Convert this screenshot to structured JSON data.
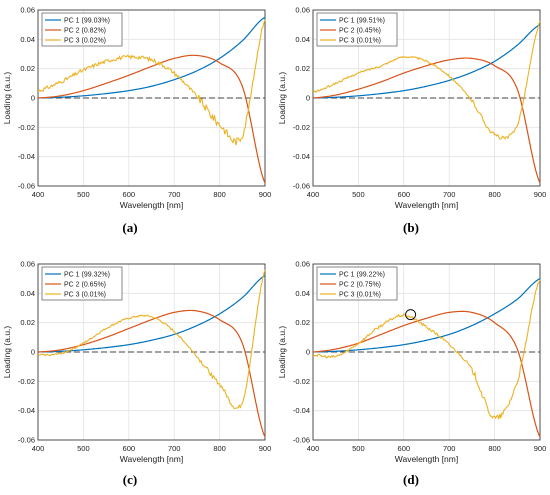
{
  "colors": {
    "pc1": "#0072BD",
    "pc2": "#D95319",
    "pc3": "#EDB120",
    "zero_line": "#444444",
    "grid": "#e3e3e3",
    "axis": "#262626"
  },
  "chart_data": [
    {
      "panel": "(a)",
      "type": "line",
      "xlabel": "Wavelength [nm]",
      "ylabel": "Loading (a.u.)",
      "xlim": [
        400,
        900
      ],
      "ylim": [
        -0.06,
        0.06
      ],
      "x_ticks": [
        "400",
        "500",
        "600",
        "700",
        "800",
        "900"
      ],
      "y_ticks": [
        "0.06",
        "0.04",
        "0.02",
        "0",
        "-0.02",
        "-0.04",
        "-0.06"
      ],
      "grid": true,
      "legend_position": "top-left",
      "noise": 0.0025,
      "x": [
        400,
        450,
        500,
        550,
        600,
        650,
        700,
        750,
        800,
        850,
        900
      ],
      "series": [
        {
          "name": "PC 1 (99.03%)",
          "values": [
            0.0,
            0.0005,
            0.0015,
            0.003,
            0.005,
            0.008,
            0.0125,
            0.0185,
            0.027,
            0.039,
            0.055
          ]
        },
        {
          "name": "PC 2 (0.82%)",
          "values": [
            0.0,
            0.0015,
            0.005,
            0.01,
            0.0155,
            0.0215,
            0.027,
            0.029,
            0.024,
            0.008,
            -0.058
          ]
        },
        {
          "name": "PC 3 (0.02%)",
          "values": [
            0.005,
            0.011,
            0.019,
            0.025,
            0.028,
            0.026,
            0.017,
            0.001,
            -0.018,
            -0.025,
            0.054
          ]
        }
      ]
    },
    {
      "panel": "(b)",
      "type": "line",
      "xlabel": "Wavelength [nm]",
      "ylabel": "Loading (a.u.)",
      "xlim": [
        400,
        900
      ],
      "ylim": [
        -0.06,
        0.06
      ],
      "x_ticks": [
        "400",
        "500",
        "600",
        "700",
        "800",
        "900"
      ],
      "y_ticks": [
        "0.06",
        "0.04",
        "0.02",
        "0",
        "-0.02",
        "-0.04",
        "-0.06"
      ],
      "grid": true,
      "legend_position": "top-left",
      "noise": 0.0012,
      "x": [
        400,
        450,
        500,
        550,
        600,
        650,
        700,
        750,
        800,
        850,
        900
      ],
      "series": [
        {
          "name": "PC 1 (99.51%)",
          "values": [
            0.0,
            0.0005,
            0.0015,
            0.003,
            0.005,
            0.008,
            0.012,
            0.0175,
            0.025,
            0.036,
            0.05
          ]
        },
        {
          "name": "PC 2 (0.45%)",
          "values": [
            0.0,
            0.002,
            0.006,
            0.011,
            0.017,
            0.022,
            0.026,
            0.027,
            0.022,
            0.006,
            -0.058
          ]
        },
        {
          "name": "PC 3 (0.01%)",
          "values": [
            0.004,
            0.01,
            0.017,
            0.022,
            0.028,
            0.025,
            0.015,
            -0.002,
            -0.025,
            -0.018,
            0.052
          ]
        }
      ]
    },
    {
      "panel": "(c)",
      "type": "line",
      "xlabel": "Wavelength [nm]",
      "ylabel": "Loading (a.u.)",
      "xlim": [
        400,
        900
      ],
      "ylim": [
        -0.06,
        0.06
      ],
      "x_ticks": [
        "400",
        "500",
        "600",
        "700",
        "800",
        "900"
      ],
      "y_ticks": [
        "0.06",
        "0.04",
        "0.02",
        "0",
        "-0.02",
        "-0.04",
        "-0.06"
      ],
      "grid": true,
      "legend_position": "top-left",
      "noise": 0.0012,
      "x": [
        400,
        450,
        500,
        550,
        600,
        650,
        700,
        750,
        800,
        850,
        900
      ],
      "series": [
        {
          "name": "PC 1 (99.32%)",
          "values": [
            0.0,
            0.0005,
            0.0015,
            0.003,
            0.005,
            0.008,
            0.012,
            0.018,
            0.026,
            0.037,
            0.052
          ]
        },
        {
          "name": "PC 2 (0.65%)",
          "values": [
            0.0,
            0.0015,
            0.005,
            0.01,
            0.016,
            0.022,
            0.027,
            0.028,
            0.022,
            0.006,
            -0.058
          ]
        },
        {
          "name": "PC 3 (0.01%)",
          "values": [
            -0.002,
            -0.001,
            0.006,
            0.016,
            0.023,
            0.024,
            0.014,
            -0.003,
            -0.022,
            -0.034,
            0.056
          ]
        }
      ]
    },
    {
      "panel": "(d)",
      "type": "line",
      "xlabel": "Wavelength [nm]",
      "ylabel": "Loading (a.u.)",
      "xlim": [
        400,
        900
      ],
      "ylim": [
        -0.06,
        0.06
      ],
      "x_ticks": [
        "400",
        "500",
        "600",
        "700",
        "800",
        "900"
      ],
      "y_ticks": [
        "0.06",
        "0.04",
        "0.02",
        "0",
        "-0.02",
        "-0.04",
        "-0.06"
      ],
      "grid": true,
      "legend_position": "top-left",
      "noise": 0.0018,
      "annotation": {
        "type": "circle",
        "x": 615,
        "y": 0.0255
      },
      "x": [
        400,
        450,
        500,
        550,
        600,
        650,
        700,
        750,
        800,
        850,
        900
      ],
      "series": [
        {
          "name": "PC 1 (99.22%)",
          "values": [
            0.0,
            0.0005,
            0.0015,
            0.003,
            0.005,
            0.008,
            0.012,
            0.018,
            0.026,
            0.036,
            0.05
          ]
        },
        {
          "name": "PC 2 (0.75%)",
          "values": [
            0.0,
            0.002,
            0.006,
            0.012,
            0.018,
            0.023,
            0.027,
            0.027,
            0.02,
            0.002,
            -0.058
          ]
        },
        {
          "name": "PC 3 (0.01%)",
          "values": [
            -0.002,
            -0.003,
            0.006,
            0.018,
            0.025,
            0.017,
            0.005,
            -0.012,
            -0.045,
            -0.02,
            0.05
          ]
        }
      ]
    }
  ],
  "panels_layout_note": ""
}
